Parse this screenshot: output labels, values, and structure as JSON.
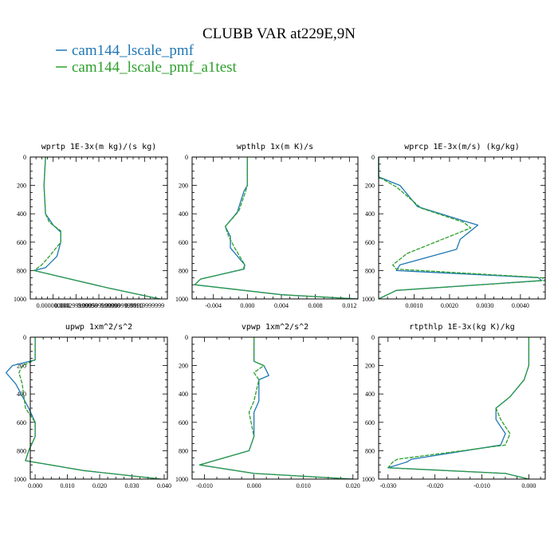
{
  "figure": {
    "title": "CLUBB VAR at229E,9N",
    "legend": [
      {
        "label": "cam144_lscale_pmf",
        "color": "#1f77b4"
      },
      {
        "label": "cam144_lscale_pmf_a1test",
        "color": "#2ca02c"
      }
    ]
  },
  "chart_data": [
    {
      "type": "line",
      "title": "wprtp  1E-3x(m kg)/(s kg)",
      "xlim": [
        -0.0003,
        0.0015
      ],
      "ylim": [
        1000,
        0
      ],
      "x_ticks": [
        0.0,
        0.0003,
        0.0006,
        0.0009,
        0.0012
      ],
      "x_tick_labels": [
        "0.000000000",
        "0.000299999990",
        "0.000599999990",
        "0.000899999990",
        "0.00119999999"
      ],
      "y_ticks": [
        0,
        200,
        400,
        600,
        800,
        1000
      ],
      "series": [
        {
          "name": "cam144_lscale_pmf",
          "color": "#1f77b4",
          "x": [
            -0.0001,
            -0.00012,
            -0.0001,
            0.0,
            0.0001,
            0.0001,
            5e-05,
            -0.0001,
            -0.00025,
            0.0007,
            0.0014
          ],
          "y": [
            0,
            200,
            400,
            480,
            530,
            600,
            700,
            780,
            800,
            920,
            1000
          ]
        },
        {
          "name": "cam144_lscale_pmf_a1test",
          "color": "#2ca02c",
          "x": [
            -0.0001,
            -0.00012,
            -0.0001,
            -5e-05,
            0.0001,
            0.0001,
            -5e-05,
            -0.00015,
            -0.00025,
            0.0007,
            0.0014
          ],
          "y": [
            0,
            200,
            400,
            460,
            520,
            600,
            700,
            760,
            800,
            920,
            1000
          ]
        }
      ]
    },
    {
      "type": "line",
      "title": "wpthlp  1x(m K)/s",
      "xlim": [
        -0.0065,
        0.013
      ],
      "ylim": [
        1000,
        0
      ],
      "x_ticks": [
        -0.004,
        0.0,
        0.004,
        0.008,
        0.012
      ],
      "x_tick_labels": [
        "-0.004",
        "0.000",
        "0.004",
        "0.008",
        "0.012"
      ],
      "y_ticks": [
        0,
        200,
        400,
        600,
        800,
        1000
      ],
      "series": [
        {
          "name": "cam144_lscale_pmf",
          "color": "#1f77b4",
          "x": [
            0.0,
            0.0,
            -0.0004,
            -0.0012,
            -0.0026,
            -0.002,
            -0.002,
            -0.0003,
            -0.0004,
            -0.0055,
            -0.0062,
            0.004,
            0.013
          ],
          "y": [
            0,
            200,
            240,
            390,
            490,
            560,
            640,
            760,
            790,
            860,
            900,
            970,
            1000
          ]
        },
        {
          "name": "cam144_lscale_pmf_a1test",
          "color": "#2ca02c",
          "x": [
            0.0,
            0.0,
            -0.0002,
            -0.001,
            -0.0026,
            -0.0022,
            -0.0014,
            -0.0003,
            -0.0005,
            -0.0055,
            -0.0062,
            0.004,
            0.013
          ],
          "y": [
            0,
            200,
            240,
            380,
            490,
            560,
            650,
            760,
            790,
            860,
            900,
            970,
            1000
          ]
        }
      ]
    },
    {
      "type": "line",
      "title": "wprcp  1E-3x(m/s) (kg/kg)",
      "xlim": [
        0.0,
        0.0047
      ],
      "ylim": [
        1000,
        0
      ],
      "x_ticks": [
        0.001,
        0.002,
        0.003,
        0.004
      ],
      "x_tick_labels": [
        "0.0010",
        "0.0020",
        "0.0030",
        "0.0040"
      ],
      "y_ticks": [
        0,
        200,
        400,
        600,
        800,
        1000
      ],
      "series": [
        {
          "name": "cam144_lscale_pmf",
          "color": "#1f77b4",
          "x": [
            0.0,
            0.0,
            0.0006,
            0.0011,
            0.0024,
            0.0028,
            0.0023,
            0.0022,
            0.0006,
            0.0005,
            0.0045,
            0.0046,
            0.0005,
            0.0
          ],
          "y": [
            0,
            140,
            200,
            350,
            450,
            480,
            580,
            650,
            760,
            800,
            850,
            870,
            940,
            1000
          ]
        },
        {
          "name": "cam144_lscale_pmf_a1test",
          "color": "#2ca02c",
          "x": [
            0.0,
            0.0,
            0.0005,
            0.0012,
            0.0024,
            0.0026,
            0.0018,
            0.0008,
            0.0004,
            0.0005,
            0.0046,
            0.0047,
            0.0005,
            0.0
          ],
          "y": [
            0,
            140,
            210,
            360,
            460,
            500,
            580,
            680,
            760,
            790,
            850,
            870,
            940,
            1000
          ]
        }
      ]
    },
    {
      "type": "line",
      "title": "upwp  1xm^2/s^2",
      "xlim": [
        -0.0015,
        0.041
      ],
      "ylim": [
        1000,
        0
      ],
      "x_ticks": [
        0.0,
        0.01,
        0.02,
        0.03,
        0.04
      ],
      "x_tick_labels": [
        "0.000",
        "0.010",
        "0.020",
        "0.030",
        "0.040"
      ],
      "y_ticks": [
        0,
        200,
        400,
        600,
        800,
        1000
      ],
      "series": [
        {
          "name": "cam144_lscale_pmf",
          "color": "#1f77b4",
          "x": [
            0.0,
            0.0,
            -0.007,
            -0.009,
            -0.006,
            -0.002,
            0.0,
            0.0,
            -0.002,
            -0.003,
            0.015,
            0.039
          ],
          "y": [
            0,
            160,
            200,
            250,
            330,
            500,
            600,
            700,
            800,
            870,
            940,
            1000
          ]
        },
        {
          "name": "cam144_lscale_pmf_a1test",
          "color": "#2ca02c",
          "x": [
            0.0,
            0.0,
            -0.004,
            -0.005,
            -0.004,
            -0.003,
            0.0,
            0.0,
            -0.002,
            -0.003,
            0.015,
            0.039
          ],
          "y": [
            0,
            160,
            200,
            250,
            330,
            500,
            600,
            700,
            800,
            870,
            940,
            1000
          ]
        }
      ]
    },
    {
      "type": "line",
      "title": "vpwp  1xm^2/s^2",
      "xlim": [
        -0.0125,
        0.021
      ],
      "ylim": [
        1000,
        0
      ],
      "x_ticks": [
        -0.01,
        0.0,
        0.01,
        0.02
      ],
      "x_tick_labels": [
        "-0.010",
        "0.000",
        "0.010",
        "0.020"
      ],
      "y_ticks": [
        0,
        200,
        400,
        600,
        800,
        1000
      ],
      "series": [
        {
          "name": "cam144_lscale_pmf",
          "color": "#1f77b4",
          "x": [
            0.0,
            0.0,
            0.002,
            0.003,
            0.001,
            0.001,
            0.0,
            0.0,
            -0.001,
            -0.011,
            0.0,
            0.02
          ],
          "y": [
            0,
            170,
            200,
            270,
            300,
            450,
            530,
            700,
            800,
            900,
            960,
            1000
          ]
        },
        {
          "name": "cam144_lscale_pmf_a1test",
          "color": "#2ca02c",
          "x": [
            0.0,
            0.0,
            0.002,
            0.0,
            0.001,
            0.0,
            -0.001,
            0.0,
            -0.001,
            -0.011,
            0.0,
            0.02
          ],
          "y": [
            0,
            170,
            200,
            250,
            300,
            450,
            530,
            700,
            800,
            900,
            960,
            1000
          ]
        }
      ]
    },
    {
      "type": "line",
      "title": "rtpthlp  1E-3x(kg K)/kg",
      "xlim": [
        -0.032,
        0.0035
      ],
      "ylim": [
        1000,
        0
      ],
      "x_ticks": [
        -0.03,
        -0.02,
        -0.01,
        0.0
      ],
      "x_tick_labels": [
        "-0.030",
        "-0.020",
        "-0.010",
        "0.000"
      ],
      "y_ticks": [
        0,
        200,
        400,
        600,
        800,
        1000
      ],
      "series": [
        {
          "name": "cam144_lscale_pmf",
          "color": "#1f77b4",
          "x": [
            0.0,
            0.0,
            -0.001,
            -0.004,
            -0.007,
            -0.007,
            -0.005,
            -0.006,
            -0.025,
            -0.026,
            -0.03,
            -0.005,
            0.0
          ],
          "y": [
            0,
            200,
            300,
            420,
            500,
            580,
            680,
            760,
            860,
            880,
            920,
            960,
            1000
          ]
        },
        {
          "name": "cam144_lscale_pmf_a1test",
          "color": "#2ca02c",
          "x": [
            0.0,
            0.0,
            -0.001,
            -0.004,
            -0.007,
            -0.006,
            -0.004,
            -0.005,
            -0.028,
            -0.029,
            -0.03,
            -0.005,
            0.0
          ],
          "y": [
            0,
            200,
            300,
            420,
            500,
            580,
            680,
            760,
            860,
            880,
            920,
            960,
            1000
          ]
        }
      ]
    }
  ]
}
